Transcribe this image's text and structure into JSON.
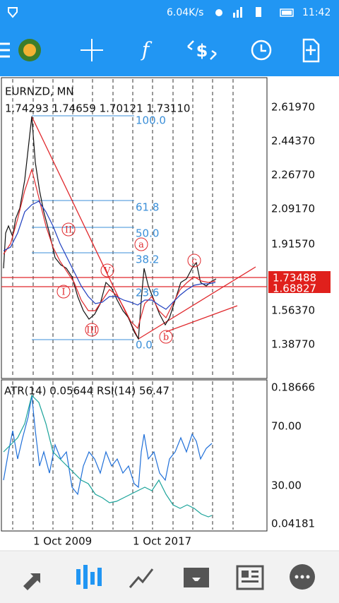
{
  "status_bar": {
    "speed": "6.04K/s",
    "time": "11:42"
  },
  "chart": {
    "symbol": "EURNZD, MN",
    "ohlc": "1.74293 1.74659 1.70121 1.73110",
    "price_axis": [
      "2.61970",
      "2.44370",
      "2.26770",
      "2.09170",
      "1.91570",
      "1.56370",
      "1.38770"
    ],
    "price_labels": [
      "1.73488",
      "1.68827"
    ],
    "fib_levels": [
      "100.0",
      "61.8",
      "50.0",
      "38.2",
      "23.6",
      "0.0"
    ],
    "waves": [
      "II",
      "I",
      "III",
      "V",
      "a",
      "b",
      "c"
    ]
  },
  "indicator": {
    "label": "ATR(14) 0.05644 RSI(14) 56.47",
    "axis": [
      "0.18666",
      "70.00",
      "30.00",
      "0.04181"
    ]
  },
  "dates": [
    "1 Oct 2009",
    "1 Oct 2017"
  ]
}
